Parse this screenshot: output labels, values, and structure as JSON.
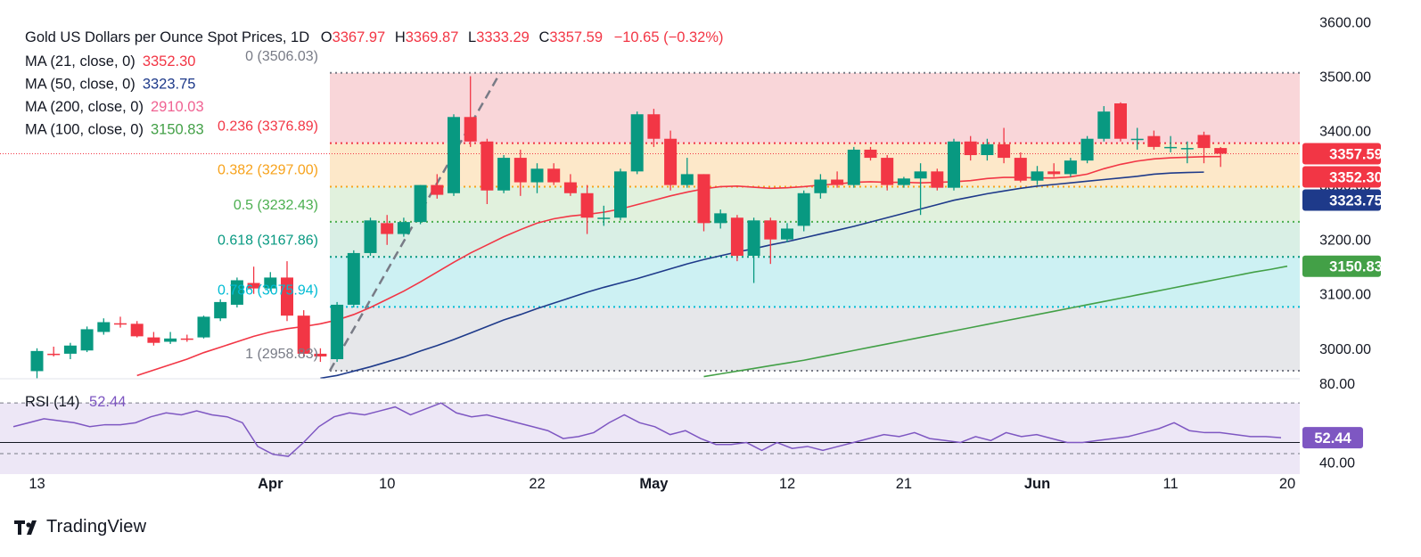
{
  "header": {
    "title": "Gold US Dollars per Ounce Spot Prices, 1D",
    "ohlc": {
      "o_label": "O",
      "o_value": "3367.97",
      "h_label": "H",
      "h_value": "3369.87",
      "l_label": "L",
      "l_value": "3333.29",
      "c_label": "C",
      "c_value": "3357.59",
      "change": "−10.65 (−0.32%)"
    }
  },
  "indicators": [
    {
      "label": "MA (21, close, 0)",
      "value": "3352.30",
      "color": "#f23645"
    },
    {
      "label": "MA (50, close, 0)",
      "value": "3323.75",
      "color": "#1e3a8a"
    },
    {
      "label": "MA (200, close, 0)",
      "value": "2910.03",
      "color": "#f06292"
    },
    {
      "label": "MA (100, close, 0)",
      "value": "3150.83",
      "color": "#43a047"
    }
  ],
  "fib_levels": [
    {
      "ratio": "0",
      "price": 3506.03,
      "price_label": "(3506.03)",
      "label_color": "#787b86",
      "line_color": "#787b86"
    },
    {
      "ratio": "0.236",
      "price": 3376.89,
      "price_label": "(3376.89)",
      "label_color": "#f23645",
      "line_color": "#f23645"
    },
    {
      "ratio": "0.382",
      "price": 3297.0,
      "price_label": "(3297.00)",
      "label_color": "#f7a21b",
      "line_color": "#f7a21b"
    },
    {
      "ratio": "0.5",
      "price": 3232.43,
      "price_label": "(3232.43)",
      "label_color": "#4caf50",
      "line_color": "#4caf50"
    },
    {
      "ratio": "0.618",
      "price": 3167.86,
      "price_label": "(3167.86)",
      "label_color": "#089981",
      "line_color": "#089981"
    },
    {
      "ratio": "0.786",
      "price": 3075.94,
      "price_label": "(3075.94)",
      "label_color": "#00bcd4",
      "line_color": "#00bcd4"
    },
    {
      "ratio": "1",
      "price": 2958.83,
      "price_label": "(2958.83)",
      "label_color": "#787b86",
      "line_color": "#787b86"
    }
  ],
  "fib_zone_colors": [
    "#f9d6d9",
    "#fde8c9",
    "#e1f1dd",
    "#d9efe5",
    "#cdf1f3",
    "#e6e7ea"
  ],
  "price_axis": {
    "ticks": [
      "3600.00",
      "3500.00",
      "3400.00",
      "3300.00",
      "3200.00",
      "3100.00",
      "3000.00"
    ],
    "tick_values": [
      3600,
      3500,
      3400,
      3300,
      3200,
      3100,
      3000
    ],
    "range": [
      2944,
      3640
    ],
    "badges": [
      {
        "value": 3357.59,
        "text": "3357.59",
        "bg": "#f23645",
        "fg": "#ffffff"
      },
      {
        "value": 3352.3,
        "text": "3352.30",
        "bg": "#f23645",
        "fg": "#ffffff"
      },
      {
        "value": 3323.75,
        "text": "3323.75",
        "bg": "#1e3a8a",
        "fg": "#ffffff"
      },
      {
        "value": 3150.83,
        "text": "3150.83",
        "bg": "#43a047",
        "fg": "#ffffff"
      }
    ]
  },
  "rsi": {
    "label": "RSI (14)",
    "value": "52.44",
    "value_num": 52.44,
    "ticks": [
      "80.00",
      "40.00"
    ],
    "tick_values": [
      80,
      40
    ],
    "range": [
      34,
      80
    ],
    "overbought": 70,
    "oversold": 30,
    "midline": 50,
    "color": "#7e57c2",
    "fill": "#ede7f6",
    "values": [
      58,
      60,
      62,
      61,
      60,
      58,
      59,
      59,
      60,
      63,
      65,
      64,
      66,
      64,
      63,
      60,
      48,
      44,
      43,
      50,
      58,
      63,
      65,
      64,
      66,
      68,
      64,
      67,
      70,
      65,
      63,
      64,
      62,
      60,
      58,
      56,
      52,
      53,
      55,
      60,
      64,
      60,
      58,
      54,
      56,
      52,
      49,
      49,
      50,
      46,
      50,
      47,
      48,
      46,
      48,
      50,
      52,
      54,
      53,
      55,
      52,
      51,
      50,
      53,
      51,
      55,
      53,
      54,
      52,
      50,
      50,
      51,
      52,
      53,
      55,
      57,
      60,
      56,
      55,
      55,
      54,
      53,
      53,
      52.44
    ]
  },
  "chart_data": {
    "type": "candlestick",
    "title": "Gold US Dollars per Ounce Spot Prices, 1D",
    "x_labels": [
      "13",
      "Apr",
      "10",
      "22",
      "May",
      "12",
      "21",
      "Jun",
      "11",
      "20"
    ],
    "x_label_bars": [
      0,
      14,
      21,
      30,
      37,
      45,
      52,
      60,
      68,
      75
    ],
    "ylim": [
      2944,
      3640
    ],
    "candles": [
      {
        "o": 2958,
        "h": 3000,
        "l": 2945,
        "c": 2995
      },
      {
        "o": 2990,
        "h": 3003,
        "l": 2985,
        "c": 2988
      },
      {
        "o": 2990,
        "h": 3010,
        "l": 2980,
        "c": 3005
      },
      {
        "o": 2996,
        "h": 3040,
        "l": 2993,
        "c": 3035
      },
      {
        "o": 3030,
        "h": 3055,
        "l": 3025,
        "c": 3048
      },
      {
        "o": 3046,
        "h": 3058,
        "l": 3038,
        "c": 3044
      },
      {
        "o": 3045,
        "h": 3050,
        "l": 3020,
        "c": 3022
      },
      {
        "o": 3020,
        "h": 3030,
        "l": 3005,
        "c": 3010
      },
      {
        "o": 3012,
        "h": 3030,
        "l": 3008,
        "c": 3018
      },
      {
        "o": 3018,
        "h": 3025,
        "l": 3012,
        "c": 3017
      },
      {
        "o": 3020,
        "h": 3060,
        "l": 3018,
        "c": 3058
      },
      {
        "o": 3055,
        "h": 3090,
        "l": 3050,
        "c": 3085
      },
      {
        "o": 3080,
        "h": 3130,
        "l": 3075,
        "c": 3125
      },
      {
        "o": 3120,
        "h": 3150,
        "l": 3100,
        "c": 3110
      },
      {
        "o": 3110,
        "h": 3140,
        "l": 3105,
        "c": 3130
      },
      {
        "o": 3130,
        "h": 3160,
        "l": 3050,
        "c": 3060
      },
      {
        "o": 3060,
        "h": 3070,
        "l": 2985,
        "c": 2990
      },
      {
        "o": 2990,
        "h": 3000,
        "l": 2975,
        "c": 2985
      },
      {
        "o": 2980,
        "h": 3085,
        "l": 2975,
        "c": 3080
      },
      {
        "o": 3080,
        "h": 3180,
        "l": 3075,
        "c": 3175
      },
      {
        "o": 3175,
        "h": 3240,
        "l": 3170,
        "c": 3235
      },
      {
        "o": 3230,
        "h": 3245,
        "l": 3190,
        "c": 3210
      },
      {
        "o": 3210,
        "h": 3240,
        "l": 3205,
        "c": 3232
      },
      {
        "o": 3232,
        "h": 3300,
        "l": 3228,
        "c": 3300
      },
      {
        "o": 3300,
        "h": 3320,
        "l": 3275,
        "c": 3282
      },
      {
        "o": 3285,
        "h": 3430,
        "l": 3280,
        "c": 3425
      },
      {
        "o": 3425,
        "h": 3500,
        "l": 3370,
        "c": 3380
      },
      {
        "o": 3380,
        "h": 3385,
        "l": 3265,
        "c": 3290
      },
      {
        "o": 3290,
        "h": 3355,
        "l": 3285,
        "c": 3350
      },
      {
        "o": 3350,
        "h": 3365,
        "l": 3280,
        "c": 3305
      },
      {
        "o": 3305,
        "h": 3340,
        "l": 3285,
        "c": 3330
      },
      {
        "o": 3330,
        "h": 3340,
        "l": 3300,
        "c": 3305
      },
      {
        "o": 3305,
        "h": 3320,
        "l": 3280,
        "c": 3285
      },
      {
        "o": 3285,
        "h": 3300,
        "l": 3210,
        "c": 3240
      },
      {
        "o": 3238,
        "h": 3262,
        "l": 3225,
        "c": 3240
      },
      {
        "o": 3240,
        "h": 3330,
        "l": 3235,
        "c": 3325
      },
      {
        "o": 3325,
        "h": 3435,
        "l": 3320,
        "c": 3430
      },
      {
        "o": 3430,
        "h": 3440,
        "l": 3370,
        "c": 3385
      },
      {
        "o": 3385,
        "h": 3400,
        "l": 3290,
        "c": 3300
      },
      {
        "o": 3300,
        "h": 3350,
        "l": 3295,
        "c": 3320
      },
      {
        "o": 3320,
        "h": 3320,
        "l": 3215,
        "c": 3230
      },
      {
        "o": 3230,
        "h": 3255,
        "l": 3220,
        "c": 3248
      },
      {
        "o": 3240,
        "h": 3245,
        "l": 3160,
        "c": 3170
      },
      {
        "o": 3170,
        "h": 3240,
        "l": 3120,
        "c": 3235
      },
      {
        "o": 3235,
        "h": 3240,
        "l": 3155,
        "c": 3200
      },
      {
        "o": 3200,
        "h": 3230,
        "l": 3195,
        "c": 3220
      },
      {
        "o": 3225,
        "h": 3290,
        "l": 3215,
        "c": 3285
      },
      {
        "o": 3285,
        "h": 3320,
        "l": 3275,
        "c": 3310
      },
      {
        "o": 3310,
        "h": 3325,
        "l": 3295,
        "c": 3300
      },
      {
        "o": 3300,
        "h": 3370,
        "l": 3295,
        "c": 3365
      },
      {
        "o": 3365,
        "h": 3370,
        "l": 3345,
        "c": 3350
      },
      {
        "o": 3350,
        "h": 3355,
        "l": 3290,
        "c": 3300
      },
      {
        "o": 3300,
        "h": 3315,
        "l": 3295,
        "c": 3312
      },
      {
        "o": 3312,
        "h": 3340,
        "l": 3245,
        "c": 3325
      },
      {
        "o": 3325,
        "h": 3330,
        "l": 3290,
        "c": 3295
      },
      {
        "o": 3295,
        "h": 3385,
        "l": 3290,
        "c": 3380
      },
      {
        "o": 3380,
        "h": 3390,
        "l": 3345,
        "c": 3355
      },
      {
        "o": 3355,
        "h": 3385,
        "l": 3345,
        "c": 3375
      },
      {
        "o": 3375,
        "h": 3405,
        "l": 3340,
        "c": 3350
      },
      {
        "o": 3350,
        "h": 3360,
        "l": 3305,
        "c": 3308
      },
      {
        "o": 3308,
        "h": 3335,
        "l": 3300,
        "c": 3325
      },
      {
        "o": 3325,
        "h": 3340,
        "l": 3315,
        "c": 3320
      },
      {
        "o": 3320,
        "h": 3350,
        "l": 3315,
        "c": 3345
      },
      {
        "o": 3345,
        "h": 3390,
        "l": 3340,
        "c": 3385
      },
      {
        "o": 3385,
        "h": 3445,
        "l": 3380,
        "c": 3435
      },
      {
        "o": 3450,
        "h": 3452,
        "l": 3380,
        "c": 3385
      },
      {
        "o": 3385,
        "h": 3405,
        "l": 3365,
        "c": 3385
      },
      {
        "o": 3390,
        "h": 3400,
        "l": 3365,
        "c": 3370
      },
      {
        "o": 3370,
        "h": 3390,
        "l": 3360,
        "c": 3370
      },
      {
        "o": 3368,
        "h": 3380,
        "l": 3340,
        "c": 3368
      },
      {
        "o": 3392,
        "h": 3398,
        "l": 3340,
        "c": 3368
      },
      {
        "o": 3367.97,
        "h": 3369.87,
        "l": 3333.29,
        "c": 3357.59
      }
    ],
    "ma_series": [
      {
        "name": "MA (21, close, 0)",
        "color": "#f23645",
        "start": 0,
        "values": [
          2900,
          2905,
          2912,
          2920,
          2930,
          2940,
          2950,
          2960,
          2970,
          2980,
          2992,
          3002,
          3012,
          3022,
          3030,
          3036,
          3040,
          3045,
          3052,
          3062,
          3075,
          3090,
          3105,
          3122,
          3140,
          3158,
          3175,
          3190,
          3205,
          3218,
          3230,
          3238,
          3243,
          3246,
          3250,
          3256,
          3264,
          3272,
          3280,
          3287,
          3293,
          3297,
          3298,
          3296,
          3294,
          3295,
          3297,
          3300,
          3302,
          3305,
          3306,
          3305,
          3305,
          3304,
          3305,
          3306,
          3308,
          3312,
          3314,
          3314,
          3313,
          3313,
          3315,
          3320,
          3330,
          3338,
          3344,
          3348,
          3350,
          3351,
          3352,
          3352.3
        ]
      },
      {
        "name": "MA (50, close, 0)",
        "color": "#1e3a8a",
        "start": 17,
        "values": [
          2945,
          2950,
          2958,
          2966,
          2975,
          2984,
          2995,
          3005,
          3016,
          3028,
          3040,
          3052,
          3062,
          3073,
          3083,
          3093,
          3103,
          3112,
          3120,
          3128,
          3137,
          3146,
          3155,
          3163,
          3170,
          3177,
          3183,
          3190,
          3196,
          3203,
          3210,
          3217,
          3224,
          3232,
          3240,
          3248,
          3256,
          3264,
          3272,
          3278,
          3284,
          3289,
          3294,
          3298,
          3301,
          3304,
          3307,
          3310,
          3313,
          3316,
          3320,
          3322,
          3323,
          3323.75
        ]
      },
      {
        "name": "MA (100, close, 0)",
        "color": "#43a047",
        "start": 40,
        "values": [
          2948,
          2953,
          2958,
          2963,
          2968,
          2973,
          2978,
          2984,
          2990,
          2996,
          3002,
          3008,
          3014,
          3020,
          3026,
          3032,
          3038,
          3044,
          3050,
          3056,
          3062,
          3068,
          3074,
          3080,
          3086,
          3092,
          3098,
          3104,
          3110,
          3116,
          3122,
          3128,
          3134,
          3140,
          3145,
          3150.83
        ]
      }
    ],
    "legend_position": "top-left",
    "grid": false
  },
  "brand": {
    "name": "TradingView",
    "mark": "TV"
  }
}
